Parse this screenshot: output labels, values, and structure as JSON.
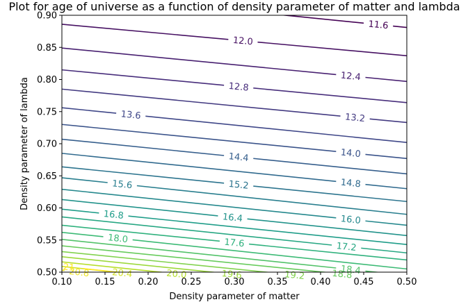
{
  "chart_data": {
    "type": "contour",
    "title": "Plot for age of universe as a function of density parameter of matter and lambda",
    "xlabel": "Density parameter of matter",
    "ylabel": "Density parameter of lambda",
    "xlim": [
      0.1,
      0.5
    ],
    "ylim": [
      0.5,
      0.9
    ],
    "xticks": [
      "0.10",
      "0.15",
      "0.20",
      "0.25",
      "0.30",
      "0.35",
      "0.40",
      "0.45",
      "0.50"
    ],
    "yticks": [
      "0.50",
      "0.55",
      "0.60",
      "0.65",
      "0.70",
      "0.75",
      "0.80",
      "0.85",
      "0.90"
    ],
    "colormap": "viridis",
    "levels": [
      {
        "value": "11.6",
        "y_left": 0.935,
        "y_right": 0.881,
        "labels": [
          {
            "text": "11.6",
            "x": 0.467
          }
        ]
      },
      {
        "value": "12.0",
        "y_left": 0.886,
        "y_right": 0.837,
        "labels": [
          {
            "text": "12.0",
            "x": 0.31
          }
        ]
      },
      {
        "value": "12.4",
        "y_left": 0.849,
        "y_right": 0.797,
        "labels": [
          {
            "text": "12.4",
            "x": 0.435
          }
        ]
      },
      {
        "value": "12.8",
        "y_left": 0.815,
        "y_right": 0.764,
        "labels": [
          {
            "text": "12.8",
            "x": 0.305
          }
        ]
      },
      {
        "value": "13.2",
        "y_left": 0.785,
        "y_right": 0.733,
        "labels": [
          {
            "text": "13.2",
            "x": 0.44
          }
        ]
      },
      {
        "value": "13.6",
        "y_left": 0.756,
        "y_right": 0.702,
        "labels": [
          {
            "text": "13.6",
            "x": 0.18
          }
        ]
      },
      {
        "value": "14.0",
        "y_left": 0.73,
        "y_right": 0.677,
        "labels": [
          {
            "text": "14.0",
            "x": 0.435
          }
        ]
      },
      {
        "value": "14.4",
        "y_left": 0.707,
        "y_right": 0.653,
        "labels": [
          {
            "text": "14.4",
            "x": 0.305
          }
        ]
      },
      {
        "value": "14.8",
        "y_left": 0.685,
        "y_right": 0.63,
        "labels": [
          {
            "text": "14.8",
            "x": 0.435
          }
        ]
      },
      {
        "value": "15.2",
        "y_left": 0.664,
        "y_right": 0.61,
        "labels": [
          {
            "text": "15.2",
            "x": 0.305
          }
        ]
      },
      {
        "value": "15.6",
        "y_left": 0.647,
        "y_right": 0.59,
        "labels": [
          {
            "text": "15.6",
            "x": 0.17
          }
        ]
      },
      {
        "value": "16.0",
        "y_left": 0.629,
        "y_right": 0.573,
        "labels": [
          {
            "text": "16.0",
            "x": 0.435
          }
        ]
      },
      {
        "value": "16.4",
        "y_left": 0.613,
        "y_right": 0.557,
        "labels": [
          {
            "text": "16.4",
            "x": 0.298
          }
        ]
      },
      {
        "value": "16.8",
        "y_left": 0.598,
        "y_right": 0.543,
        "labels": [
          {
            "text": "16.8",
            "x": 0.16
          }
        ]
      },
      {
        "value": "17.2",
        "y_left": 0.586,
        "y_right": 0.53,
        "labels": [
          {
            "text": "17.2",
            "x": 0.43
          }
        ]
      },
      {
        "value": "17.6",
        "y_left": 0.573,
        "y_right": 0.519,
        "labels": [
          {
            "text": "17.6",
            "x": 0.3
          }
        ]
      },
      {
        "value": "18.0",
        "y_left": 0.562,
        "y_right": 0.505,
        "labels": [
          {
            "text": "18.0",
            "x": 0.165
          }
        ]
      },
      {
        "value": "18.4",
        "y_left": 0.551,
        "y_right": 0.495,
        "labels": [
          {
            "text": "18.4",
            "x": 0.435
          }
        ]
      },
      {
        "value": "18.8",
        "y_left": 0.541,
        "y_right": 0.487,
        "labels": [
          {
            "text": "18.8",
            "x": 0.425
          }
        ]
      },
      {
        "value": "19.2",
        "y_left": 0.532,
        "y_right": 0.478,
        "labels": [
          {
            "text": "19.2",
            "x": 0.37
          }
        ]
      },
      {
        "value": "19.6",
        "y_left": 0.524,
        "y_right": 0.469,
        "labels": [
          {
            "text": "19.6",
            "x": 0.297
          }
        ]
      },
      {
        "value": "20.0",
        "y_left": 0.516,
        "y_right": 0.46,
        "labels": [
          {
            "text": "20.0",
            "x": 0.233
          }
        ]
      },
      {
        "value": "20.4",
        "y_left": 0.509,
        "y_right": 0.451,
        "labels": [
          {
            "text": "20.4",
            "x": 0.17
          }
        ]
      },
      {
        "value": "20.8",
        "y_left": 0.503,
        "y_right": 0.442,
        "labels": [
          {
            "text": "20.8",
            "x": 0.12
          }
        ]
      },
      {
        "value": "21",
        "y_left": 0.509,
        "y_right": 0.453,
        "labels": [
          {
            "text": "21",
            "x": 0.108
          }
        ]
      }
    ]
  }
}
